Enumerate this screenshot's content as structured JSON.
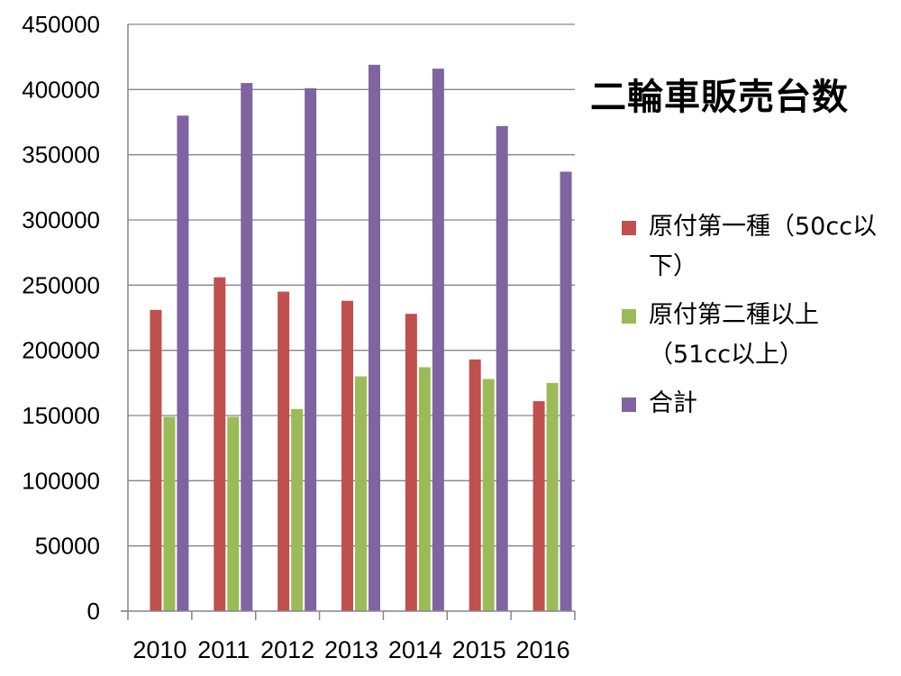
{
  "chart_data": {
    "type": "bar",
    "title": "二輪車販売台数",
    "categories": [
      "2010",
      "2011",
      "2012",
      "2013",
      "2014",
      "2015",
      "2016"
    ],
    "series": [
      {
        "name": "原付第一種（50cc以下）",
        "name_lines": [
          "原付第一種（50cc以",
          "下）"
        ],
        "color": "#C0504D",
        "values": [
          231000,
          256000,
          245000,
          238000,
          228000,
          193000,
          161000
        ]
      },
      {
        "name": "原付第二種以上（51cc以上）",
        "name_lines": [
          "原付第二種以上",
          "（51cc以上）"
        ],
        "color": "#9BBB59",
        "values": [
          149000,
          149000,
          155000,
          180000,
          187000,
          178000,
          175000
        ]
      },
      {
        "name": "合計",
        "name_lines": [
          "合計",
          ""
        ],
        "color": "#8064A2",
        "values": [
          380000,
          405000,
          401000,
          419000,
          416000,
          372000,
          337000
        ]
      }
    ],
    "ylim": [
      0,
      450000
    ],
    "yticks": [
      0,
      50000,
      100000,
      150000,
      200000,
      250000,
      300000,
      350000,
      400000,
      450000
    ],
    "grid": true,
    "legend": "right"
  }
}
